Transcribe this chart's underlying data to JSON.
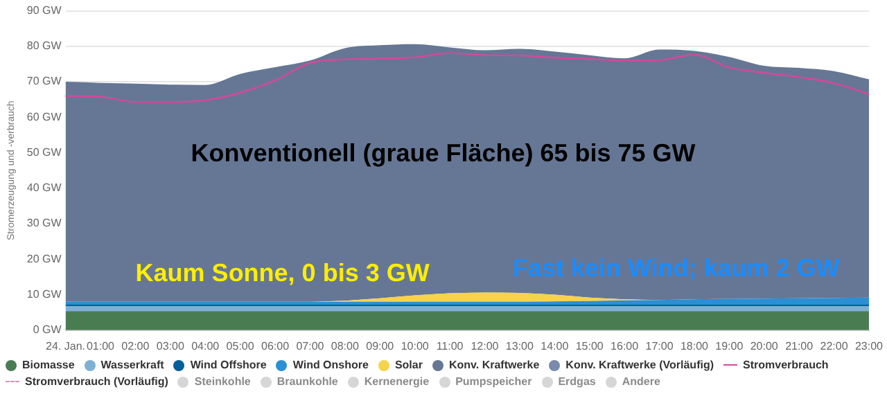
{
  "chart_data": {
    "type": "area",
    "stacked": true,
    "ylabel": "Stromerzeugung und -verbrauch",
    "grid": "y",
    "legend": "bottom",
    "marker": "none",
    "categories": [
      "24. Jan.",
      "01:00",
      "02:00",
      "03:00",
      "04:00",
      "05:00",
      "06:00",
      "07:00",
      "08:00",
      "09:00",
      "10:00",
      "11:00",
      "12:00",
      "13:00",
      "14:00",
      "15:00",
      "16:00",
      "17:00",
      "18:00",
      "19:00",
      "20:00",
      "21:00",
      "22:00",
      "23:00"
    ],
    "ylim": [
      0,
      90
    ],
    "yticks": [
      {
        "value": 0,
        "label": "0 GW"
      },
      {
        "value": 10,
        "label": "10 GW"
      },
      {
        "value": 20,
        "label": "20 GW"
      },
      {
        "value": 30,
        "label": "30 GW"
      },
      {
        "value": 40,
        "label": "40 GW"
      },
      {
        "value": 50,
        "label": "50 GW"
      },
      {
        "value": 60,
        "label": "60 GW"
      },
      {
        "value": 70,
        "label": "70 GW"
      },
      {
        "value": 80,
        "label": "80 GW"
      },
      {
        "value": 90,
        "label": "90 GW"
      }
    ],
    "series": [
      {
        "name": "Biomasse",
        "color": "#4a7c52",
        "values": [
          5.4,
          5.4,
          5.4,
          5.4,
          5.4,
          5.4,
          5.4,
          5.4,
          5.4,
          5.4,
          5.4,
          5.4,
          5.4,
          5.4,
          5.4,
          5.4,
          5.4,
          5.4,
          5.4,
          5.4,
          5.4,
          5.4,
          5.4,
          5.4
        ]
      },
      {
        "name": "Wasserkraft",
        "color": "#7fb0d4",
        "values": [
          1.3,
          1.3,
          1.3,
          1.3,
          1.3,
          1.3,
          1.3,
          1.3,
          1.3,
          1.3,
          1.3,
          1.3,
          1.3,
          1.3,
          1.3,
          1.3,
          1.3,
          1.3,
          1.3,
          1.3,
          1.3,
          1.3,
          1.3,
          1.3
        ]
      },
      {
        "name": "Wind Offshore",
        "color": "#005f99",
        "values": [
          0.5,
          0.5,
          0.5,
          0.5,
          0.5,
          0.5,
          0.5,
          0.5,
          0.5,
          0.5,
          0.5,
          0.5,
          0.5,
          0.5,
          0.5,
          0.5,
          0.5,
          0.5,
          0.5,
          0.5,
          0.5,
          0.5,
          0.5,
          0.5
        ]
      },
      {
        "name": "Wind Onshore",
        "color": "#2a8fd4",
        "values": [
          0.8,
          0.8,
          0.8,
          0.8,
          0.8,
          0.8,
          0.8,
          0.8,
          0.8,
          0.8,
          0.8,
          0.8,
          0.8,
          0.8,
          0.9,
          1.0,
          1.2,
          1.3,
          1.5,
          1.6,
          1.7,
          1.8,
          1.9,
          2.0
        ]
      },
      {
        "name": "Solar",
        "color": "#f5d34a",
        "values": [
          0,
          0,
          0,
          0,
          0,
          0,
          0,
          0,
          0.3,
          1.0,
          1.8,
          2.4,
          2.6,
          2.5,
          1.9,
          1.0,
          0.3,
          0,
          0,
          0,
          0,
          0,
          0,
          0
        ]
      },
      {
        "name": "Konv. Kraftwerke",
        "color": "#667795",
        "values": [
          62.0,
          61.7,
          61.5,
          61.2,
          61.1,
          64.2,
          66.1,
          68.0,
          71.2,
          71.3,
          70.8,
          69.3,
          68.3,
          68.8,
          68.5,
          68.3,
          67.9,
          70.6,
          70.0,
          68.2,
          65.6,
          64.9,
          63.9,
          61.5
        ]
      },
      {
        "name": "Konv. Kraftwerke (Vorläufig)",
        "color": "#7a8bab",
        "values": [
          null,
          null,
          null,
          null,
          null,
          null,
          null,
          null,
          null,
          null,
          null,
          null,
          null,
          null,
          null,
          null,
          null,
          null,
          null,
          null,
          null,
          null,
          null,
          null
        ]
      },
      {
        "name": "Stromverbrauch",
        "type": "line",
        "color": "#d9479a",
        "line_style": "solid",
        "values": [
          66.0,
          65.8,
          64.3,
          64.3,
          64.8,
          66.9,
          70.4,
          75.3,
          76.3,
          76.5,
          76.9,
          78.1,
          77.5,
          77.4,
          76.8,
          76.4,
          76.0,
          76.1,
          77.6,
          74.0,
          72.5,
          71.3,
          69.6,
          66.5
        ]
      },
      {
        "name": "Stromverbrauch (Vorläufig)",
        "type": "line",
        "color": "#d98fbd",
        "line_style": "dashed",
        "values": [
          null,
          null,
          null,
          null,
          null,
          null,
          null,
          null,
          null,
          null,
          null,
          null,
          null,
          null,
          null,
          null,
          null,
          null,
          null,
          null,
          null,
          null,
          null,
          null
        ]
      },
      {
        "name": "Steinkohle",
        "color": "#d6d6d6",
        "values": [
          null,
          null,
          null,
          null,
          null,
          null,
          null,
          null,
          null,
          null,
          null,
          null,
          null,
          null,
          null,
          null,
          null,
          null,
          null,
          null,
          null,
          null,
          null,
          null
        ]
      },
      {
        "name": "Braunkohle",
        "color": "#d6d6d6",
        "values": [
          null,
          null,
          null,
          null,
          null,
          null,
          null,
          null,
          null,
          null,
          null,
          null,
          null,
          null,
          null,
          null,
          null,
          null,
          null,
          null,
          null,
          null,
          null,
          null
        ]
      },
      {
        "name": "Kernenergie",
        "color": "#d6d6d6",
        "values": [
          null,
          null,
          null,
          null,
          null,
          null,
          null,
          null,
          null,
          null,
          null,
          null,
          null,
          null,
          null,
          null,
          null,
          null,
          null,
          null,
          null,
          null,
          null,
          null
        ]
      },
      {
        "name": "Pumpspeicher",
        "color": "#d6d6d6",
        "values": [
          null,
          null,
          null,
          null,
          null,
          null,
          null,
          null,
          null,
          null,
          null,
          null,
          null,
          null,
          null,
          null,
          null,
          null,
          null,
          null,
          null,
          null,
          null,
          null
        ]
      },
      {
        "name": "Erdgas",
        "color": "#d6d6d6",
        "values": [
          null,
          null,
          null,
          null,
          null,
          null,
          null,
          null,
          null,
          null,
          null,
          null,
          null,
          null,
          null,
          null,
          null,
          null,
          null,
          null,
          null,
          null,
          null,
          null
        ]
      },
      {
        "name": "Andere",
        "color": "#d6d6d6",
        "values": [
          null,
          null,
          null,
          null,
          null,
          null,
          null,
          null,
          null,
          null,
          null,
          null,
          null,
          null,
          null,
          null,
          null,
          null,
          null,
          null,
          null,
          null,
          null,
          null
        ]
      }
    ],
    "annotations": [
      "Konventionell (graue Fläche) 65 bis 75 GW",
      "Kaum Sonne, 0 bis 3 GW",
      "Fast kein Wind; kaum 2 GW"
    ]
  }
}
